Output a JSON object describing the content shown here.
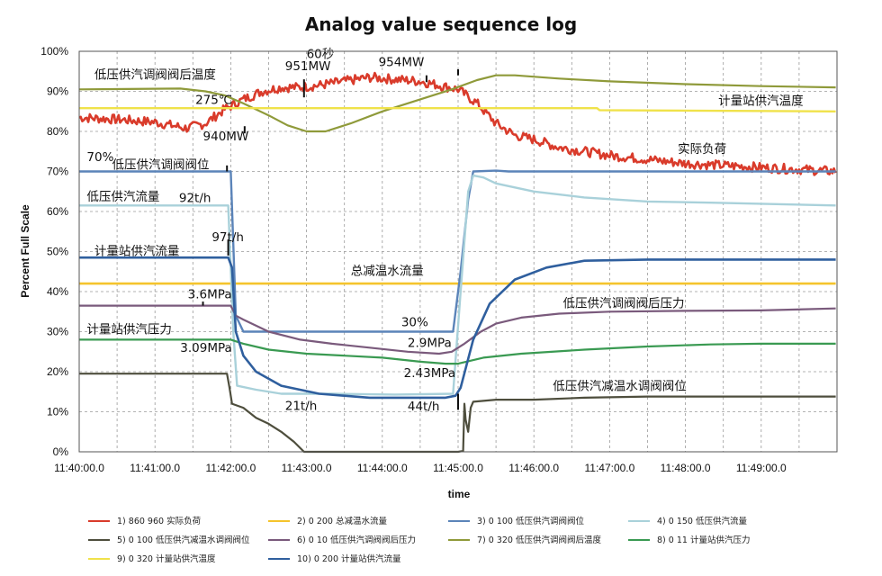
{
  "chart_data": {
    "type": "line",
    "title": "Analog value sequence log",
    "xlabel": "time",
    "ylabel": "Percent Full Scale",
    "xlim": [
      0,
      600
    ],
    "ylim": [
      0,
      100
    ],
    "grid": true,
    "legend_position": "bottom",
    "x_ticks": [
      {
        "t": 0,
        "label": "11:40:00.0"
      },
      {
        "t": 60,
        "label": "11:41:00.0"
      },
      {
        "t": 120,
        "label": "11:42:00.0"
      },
      {
        "t": 180,
        "label": "11:43:00.0"
      },
      {
        "t": 240,
        "label": "11:44:00.0"
      },
      {
        "t": 300,
        "label": "11:45:00.0"
      },
      {
        "t": 360,
        "label": "11:46:00.0"
      },
      {
        "t": 420,
        "label": "11:47:00.0"
      },
      {
        "t": 480,
        "label": "11:48:00.0"
      },
      {
        "t": 540,
        "label": "11:49:00.0"
      }
    ],
    "y_ticks": [
      {
        "v": 0,
        "label": "0%"
      },
      {
        "v": 10,
        "label": "10%"
      },
      {
        "v": 20,
        "label": "20%"
      },
      {
        "v": 30,
        "label": "30%"
      },
      {
        "v": 40,
        "label": "40%"
      },
      {
        "v": 50,
        "label": "50%"
      },
      {
        "v": 60,
        "label": "60%"
      },
      {
        "v": 70,
        "label": "70%"
      },
      {
        "v": 80,
        "label": "80%"
      },
      {
        "v": 90,
        "label": "90%"
      },
      {
        "v": 100,
        "label": "100%"
      }
    ],
    "series": [
      {
        "name": "1) 860 960 实际负荷",
        "color": "#d93b2b",
        "width": 2.6,
        "noise": 1.2,
        "points": [
          [
            0,
            83.5
          ],
          [
            30,
            83
          ],
          [
            60,
            82.3
          ],
          [
            85,
            80.8
          ],
          [
            100,
            82
          ],
          [
            115,
            85.5
          ],
          [
            130,
            88
          ],
          [
            145,
            90
          ],
          [
            160,
            91
          ],
          [
            175,
            91
          ],
          [
            190,
            91.5
          ],
          [
            210,
            92.5
          ],
          [
            230,
            93.5
          ],
          [
            250,
            93
          ],
          [
            270,
            92.5
          ],
          [
            285,
            91.5
          ],
          [
            300,
            90.5
          ],
          [
            315,
            87
          ],
          [
            330,
            82
          ],
          [
            345,
            79
          ],
          [
            360,
            78
          ],
          [
            380,
            76
          ],
          [
            400,
            75
          ],
          [
            420,
            74
          ],
          [
            450,
            73
          ],
          [
            480,
            72
          ],
          [
            510,
            71.5
          ],
          [
            540,
            71
          ],
          [
            570,
            70.5
          ],
          [
            599,
            70
          ]
        ]
      },
      {
        "name": "2) 0 200 总减温水流量",
        "color": "#f5c42c",
        "width": 2.6,
        "points": [
          [
            0,
            42
          ],
          [
            599,
            42
          ]
        ]
      },
      {
        "name": "3) 0 100 低压供汽调阀阀位",
        "color": "#5b84b9",
        "width": 2.4,
        "points": [
          [
            0,
            70
          ],
          [
            118,
            70
          ],
          [
            120,
            70
          ],
          [
            124,
            34
          ],
          [
            130,
            30
          ],
          [
            200,
            30
          ],
          [
            290,
            30
          ],
          [
            296,
            30
          ],
          [
            302,
            45
          ],
          [
            308,
            63
          ],
          [
            312,
            70
          ],
          [
            330,
            70.2
          ],
          [
            340,
            70
          ],
          [
            599,
            70
          ]
        ]
      },
      {
        "name": "4) 0 150 低压供汽流量",
        "color": "#a9d1da",
        "width": 2.4,
        "points": [
          [
            0,
            61.5
          ],
          [
            118,
            61.5
          ],
          [
            122,
            30
          ],
          [
            125,
            16.5
          ],
          [
            140,
            15.5
          ],
          [
            160,
            14.5
          ],
          [
            200,
            14.5
          ],
          [
            250,
            14.3
          ],
          [
            296,
            14.5
          ],
          [
            302,
            40
          ],
          [
            308,
            65
          ],
          [
            312,
            69
          ],
          [
            320,
            68.5
          ],
          [
            330,
            67
          ],
          [
            360,
            65
          ],
          [
            400,
            63.5
          ],
          [
            450,
            62.5
          ],
          [
            500,
            62.2
          ],
          [
            599,
            61.5
          ]
        ]
      },
      {
        "name": "5) 0 100 低压供汽减温水调阀阀位",
        "color": "#4e4e3d",
        "width": 2.2,
        "points": [
          [
            0,
            19.5
          ],
          [
            60,
            19.5
          ],
          [
            117,
            19.5
          ],
          [
            119,
            16
          ],
          [
            121,
            12
          ],
          [
            130,
            11
          ],
          [
            140,
            8.5
          ],
          [
            150,
            7
          ],
          [
            160,
            5
          ],
          [
            170,
            2.5
          ],
          [
            178,
            0
          ],
          [
            300,
            0
          ],
          [
            304,
            0.2
          ],
          [
            305,
            12
          ],
          [
            306,
            8
          ],
          [
            308,
            5
          ],
          [
            310,
            11
          ],
          [
            312,
            12.5
          ],
          [
            330,
            13
          ],
          [
            360,
            13
          ],
          [
            400,
            13.5
          ],
          [
            450,
            13.8
          ],
          [
            500,
            13.8
          ],
          [
            599,
            13.8
          ]
        ]
      },
      {
        "name": "6) 0 10 低压供汽调阀阀后压力",
        "color": "#7a5a7c",
        "width": 2.2,
        "points": [
          [
            0,
            36.5
          ],
          [
            110,
            36.5
          ],
          [
            120,
            36.5
          ],
          [
            124,
            34
          ],
          [
            130,
            33
          ],
          [
            150,
            30
          ],
          [
            175,
            28
          ],
          [
            200,
            27
          ],
          [
            230,
            26
          ],
          [
            260,
            25
          ],
          [
            285,
            24.5
          ],
          [
            295,
            25
          ],
          [
            305,
            27
          ],
          [
            318,
            30
          ],
          [
            330,
            32
          ],
          [
            350,
            33.5
          ],
          [
            380,
            34.5
          ],
          [
            420,
            35
          ],
          [
            480,
            35.2
          ],
          [
            540,
            35.3
          ],
          [
            599,
            35.8
          ]
        ]
      },
      {
        "name": "7) 0 320 低压供汽调阀阀后温度",
        "color": "#8f9a3a",
        "width": 2.2,
        "points": [
          [
            0,
            90.5
          ],
          [
            80,
            90.7
          ],
          [
            100,
            90
          ],
          [
            115,
            89
          ],
          [
            130,
            87
          ],
          [
            150,
            84
          ],
          [
            165,
            81.5
          ],
          [
            180,
            80
          ],
          [
            195,
            80
          ],
          [
            215,
            82
          ],
          [
            240,
            85
          ],
          [
            270,
            88
          ],
          [
            295,
            90.5
          ],
          [
            315,
            92.8
          ],
          [
            330,
            94
          ],
          [
            345,
            94
          ],
          [
            380,
            93.2
          ],
          [
            420,
            92.5
          ],
          [
            480,
            91.8
          ],
          [
            540,
            91.3
          ],
          [
            599,
            91
          ]
        ]
      },
      {
        "name": "8) 0 11 计量站供汽压力",
        "color": "#3a9a52",
        "width": 2.2,
        "points": [
          [
            0,
            28
          ],
          [
            100,
            28
          ],
          [
            120,
            28
          ],
          [
            130,
            27
          ],
          [
            150,
            25.5
          ],
          [
            180,
            24.5
          ],
          [
            210,
            24
          ],
          [
            240,
            23.5
          ],
          [
            270,
            22.5
          ],
          [
            290,
            22
          ],
          [
            300,
            22
          ],
          [
            320,
            23.5
          ],
          [
            350,
            24.5
          ],
          [
            400,
            25.5
          ],
          [
            450,
            26.3
          ],
          [
            500,
            26.8
          ],
          [
            540,
            27
          ],
          [
            599,
            27
          ]
        ]
      },
      {
        "name": "9) 0 320 计量站供汽温度",
        "color": "#f0e24a",
        "width": 2.4,
        "points": [
          [
            0,
            85.8
          ],
          [
            410,
            85.8
          ],
          [
            412,
            85.3
          ],
          [
            599,
            85
          ]
        ]
      },
      {
        "name": "10) 0 200 计量站供汽流量",
        "color": "#2f5f9e",
        "width": 2.6,
        "points": [
          [
            0,
            48.5
          ],
          [
            118,
            48.5
          ],
          [
            121,
            46
          ],
          [
            124,
            30
          ],
          [
            130,
            24
          ],
          [
            140,
            20
          ],
          [
            160,
            16.5
          ],
          [
            190,
            14.5
          ],
          [
            230,
            13.5
          ],
          [
            290,
            13.5
          ],
          [
            298,
            14
          ],
          [
            302,
            16
          ],
          [
            312,
            28
          ],
          [
            325,
            37
          ],
          [
            345,
            43
          ],
          [
            370,
            46
          ],
          [
            400,
            47.7
          ],
          [
            450,
            48
          ],
          [
            599,
            48
          ]
        ]
      }
    ]
  },
  "annotations": [
    {
      "text": "低压供汽调阀阀后温度",
      "t": 12,
      "v": 93.2
    },
    {
      "text": "60秒",
      "t": 180,
      "v": 98.3
    },
    {
      "text": "951MW",
      "t": 163,
      "v": 95.3
    },
    {
      "text": "954MW",
      "t": 237,
      "v": 96.3
    },
    {
      "text": "275℃",
      "t": 92,
      "v": 86.8
    },
    {
      "text": "计量站供汽温度",
      "t": 506,
      "v": 86.6
    },
    {
      "text": "940MW",
      "t": 98,
      "v": 77.7
    },
    {
      "text": "实际负荷",
      "t": 474,
      "v": 74.6
    },
    {
      "text": "70%",
      "t": 6,
      "v": 72.6
    },
    {
      "text": "低压供汽调阀阀位",
      "t": 26,
      "v": 70.7
    },
    {
      "text": "低压供汽流量",
      "t": 6,
      "v": 62.7
    },
    {
      "text": "92t/h",
      "t": 79,
      "v": 62.4
    },
    {
      "text": "97t/h",
      "t": 105,
      "v": 52.6
    },
    {
      "text": "计量站供汽流量",
      "t": 12,
      "v": 49.1
    },
    {
      "text": "总减温水流量",
      "t": 215,
      "v": 44.2
    },
    {
      "text": "3.6MPa",
      "t": 86,
      "v": 38.3
    },
    {
      "text": "低压供汽调阀阀后压力",
      "t": 383,
      "v": 36.1
    },
    {
      "text": "30%",
      "t": 255,
      "v": 31.3
    },
    {
      "text": "计量站供汽压力",
      "t": 6,
      "v": 29.5
    },
    {
      "text": "2.9MPa",
      "t": 260,
      "v": 26.2
    },
    {
      "text": "3.09MPa",
      "t": 80,
      "v": 24.9
    },
    {
      "text": "2.43MPa",
      "t": 257,
      "v": 18.7
    },
    {
      "text": "低压供汽减温水调阀阀位",
      "t": 375,
      "v": 15.4
    },
    {
      "text": "21t/h",
      "t": 163,
      "v": 10.4
    },
    {
      "text": "44t/h",
      "t": 260,
      "v": 10.3
    }
  ],
  "markers": [
    {
      "t": 178,
      "v1": 88.5,
      "v2": 93
    },
    {
      "t": 131,
      "v1": 79.5,
      "v2": 81.3
    },
    {
      "t": 275,
      "v1": 92.3,
      "v2": 94
    },
    {
      "t": 300,
      "v1": 94,
      "v2": 95.5
    },
    {
      "t": 300,
      "v1": 14.5,
      "v2": 10.5
    },
    {
      "t": 118,
      "v1": 49,
      "v2": 53
    },
    {
      "t": 117,
      "v1": 70,
      "v2": 71.5
    },
    {
      "t": 98,
      "v1": 37.5,
      "v2": 36.5
    }
  ]
}
